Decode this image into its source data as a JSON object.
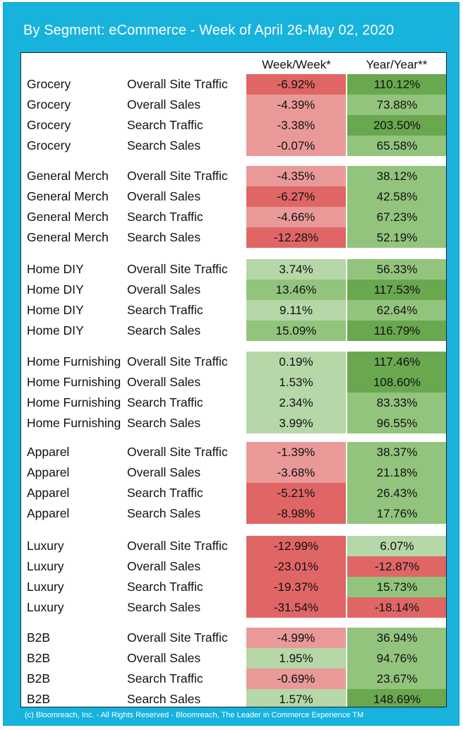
{
  "title": "By Segment: eCommerce - Week of April 26-May 02, 2020",
  "columns": {
    "week_week": "Week/Week*",
    "year_year": "Year/Year**"
  },
  "colors": {
    "frame_blue": "#17b3dd",
    "neg_strong": "#e06666",
    "neg_light": "#ea9999",
    "pos_light": "#b6d7a8",
    "pos_mid": "#93c47d",
    "pos_strong": "#6aa84f"
  },
  "groups": [
    {
      "rows": [
        {
          "segment": "Grocery",
          "metric": "Overall Site Traffic",
          "ww": "-6.92%",
          "yy": "110.12%",
          "ww_shade": "neg_strong",
          "yy_shade": "pos_strong"
        },
        {
          "segment": "Grocery",
          "metric": "Overall Sales",
          "ww": "-4.39%",
          "yy": "73.88%",
          "ww_shade": "neg_light",
          "yy_shade": "pos_mid"
        },
        {
          "segment": "Grocery",
          "metric": "Search Traffic",
          "ww": "-3.38%",
          "yy": "203.50%",
          "ww_shade": "neg_light",
          "yy_shade": "pos_strong"
        },
        {
          "segment": "Grocery",
          "metric": "Search Sales",
          "ww": "-0.07%",
          "yy": "65.58%",
          "ww_shade": "neg_light",
          "yy_shade": "pos_mid"
        }
      ]
    },
    {
      "rows": [
        {
          "segment": "General Merch",
          "metric": "Overall Site Traffic",
          "ww": "-4.35%",
          "yy": "38.12%",
          "ww_shade": "neg_light",
          "yy_shade": "pos_mid"
        },
        {
          "segment": "General Merch",
          "metric": "Overall Sales",
          "ww": "-6.27%",
          "yy": "42.58%",
          "ww_shade": "neg_strong",
          "yy_shade": "pos_mid"
        },
        {
          "segment": "General Merch",
          "metric": "Search Traffic",
          "ww": "-4.66%",
          "yy": "67.23%",
          "ww_shade": "neg_light",
          "yy_shade": "pos_mid"
        },
        {
          "segment": "General Merch",
          "metric": "Search Sales",
          "ww": "-12.28%",
          "yy": "52.19%",
          "ww_shade": "neg_strong",
          "yy_shade": "pos_mid"
        }
      ]
    },
    {
      "rows": [
        {
          "segment": "Home DIY",
          "metric": "Overall Site Traffic",
          "ww": "3.74%",
          "yy": "56.33%",
          "ww_shade": "pos_light",
          "yy_shade": "pos_mid"
        },
        {
          "segment": "Home DIY",
          "metric": "Overall Sales",
          "ww": "13.46%",
          "yy": "117.53%",
          "ww_shade": "pos_mid",
          "yy_shade": "pos_strong"
        },
        {
          "segment": "Home DIY",
          "metric": "Search Traffic",
          "ww": "9.11%",
          "yy": "62.64%",
          "ww_shade": "pos_light",
          "yy_shade": "pos_mid"
        },
        {
          "segment": "Home DIY",
          "metric": "Search Sales",
          "ww": "15.09%",
          "yy": "116.79%",
          "ww_shade": "pos_mid",
          "yy_shade": "pos_strong"
        }
      ]
    },
    {
      "rows": [
        {
          "segment": "Home Furnishing",
          "metric": "Overall Site Traffic",
          "ww": "0.19%",
          "yy": "117.46%",
          "ww_shade": "pos_light",
          "yy_shade": "pos_strong"
        },
        {
          "segment": "Home Furnishing",
          "metric": "Overall Sales",
          "ww": "1.53%",
          "yy": "108.60%",
          "ww_shade": "pos_light",
          "yy_shade": "pos_strong"
        },
        {
          "segment": "Home Furnishing",
          "metric": "Search Traffic",
          "ww": "2.34%",
          "yy": "83.33%",
          "ww_shade": "pos_light",
          "yy_shade": "pos_mid"
        },
        {
          "segment": "Home Furnishing",
          "metric": "Search Sales",
          "ww": "3.99%",
          "yy": "96.55%",
          "ww_shade": "pos_light",
          "yy_shade": "pos_mid"
        }
      ]
    },
    {
      "rows": [
        {
          "segment": "Apparel",
          "metric": "Overall Site Traffic",
          "ww": "-1.39%",
          "yy": "38.37%",
          "ww_shade": "neg_light",
          "yy_shade": "pos_mid"
        },
        {
          "segment": "Apparel",
          "metric": "Overall Sales",
          "ww": "-3.68%",
          "yy": "21.18%",
          "ww_shade": "neg_light",
          "yy_shade": "pos_mid"
        },
        {
          "segment": "Apparel",
          "metric": "Search Traffic",
          "ww": "-5.21%",
          "yy": "26.43%",
          "ww_shade": "neg_strong",
          "yy_shade": "pos_mid"
        },
        {
          "segment": "Apparel",
          "metric": "Search Sales",
          "ww": "-8.98%",
          "yy": "17.76%",
          "ww_shade": "neg_strong",
          "yy_shade": "pos_mid"
        }
      ]
    },
    {
      "rows": [
        {
          "segment": "Luxury",
          "metric": "Overall Site Traffic",
          "ww": "-12.99%",
          "yy": "6.07%",
          "ww_shade": "neg_strong",
          "yy_shade": "pos_light"
        },
        {
          "segment": "Luxury",
          "metric": "Overall Sales",
          "ww": "-23.01%",
          "yy": "-12.87%",
          "ww_shade": "neg_strong",
          "yy_shade": "neg_strong"
        },
        {
          "segment": "Luxury",
          "metric": "Search Traffic",
          "ww": "-19.37%",
          "yy": "15.73%",
          "ww_shade": "neg_strong",
          "yy_shade": "pos_mid"
        },
        {
          "segment": "Luxury",
          "metric": "Search Sales",
          "ww": "-31.54%",
          "yy": "-18.14%",
          "ww_shade": "neg_strong",
          "yy_shade": "neg_strong"
        }
      ]
    },
    {
      "rows": [
        {
          "segment": "B2B",
          "metric": "Overall Site Traffic",
          "ww": "-4.99%",
          "yy": "36.94%",
          "ww_shade": "neg_light",
          "yy_shade": "pos_mid"
        },
        {
          "segment": "B2B",
          "metric": "Overall Sales",
          "ww": "1.95%",
          "yy": "94.76%",
          "ww_shade": "pos_light",
          "yy_shade": "pos_mid"
        },
        {
          "segment": "B2B",
          "metric": "Search Traffic",
          "ww": "-0.69%",
          "yy": "23.67%",
          "ww_shade": "neg_light",
          "yy_shade": "pos_mid"
        },
        {
          "segment": "B2B",
          "metric": "Search Sales",
          "ww": "1.57%",
          "yy": "148.69%",
          "ww_shade": "pos_light",
          "yy_shade": "pos_strong"
        }
      ]
    }
  ],
  "footer": "(c) Bloomreach, Inc. - All Rights Reserved - Bloomreach, The Leader in Commerce Experience TM"
}
